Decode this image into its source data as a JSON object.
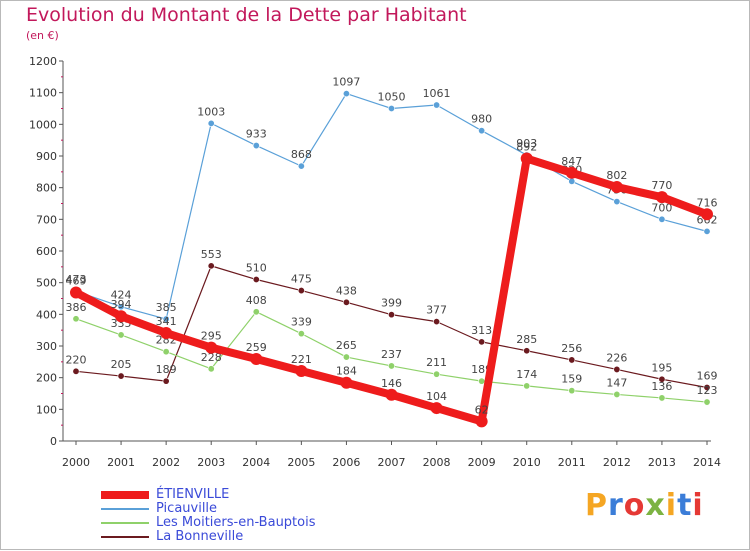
{
  "header": {
    "title": "Evolution du Montant de la Dette par Habitant",
    "unit": "(en €)"
  },
  "logo": {
    "text": "Proxiti",
    "colors": [
      "#f5a623",
      "#3b7dd8",
      "#e53935",
      "#7cb342",
      "#f5a623",
      "#3b7dd8",
      "#e53935"
    ]
  },
  "chart_data": {
    "type": "line",
    "title": "Evolution du Montant de la Dette par Habitant",
    "ylabel": "(en €)",
    "xlabel": "",
    "ylim": [
      0,
      1200
    ],
    "yticks": [
      0,
      100,
      200,
      300,
      400,
      500,
      600,
      700,
      800,
      900,
      1000,
      1100,
      1200
    ],
    "grid": false,
    "legend_position": "bottom-left",
    "categories": [
      "2000",
      "2001",
      "2002",
      "2003",
      "2004",
      "2005",
      "2006",
      "2007",
      "2008",
      "2009",
      "2010",
      "2011",
      "2012",
      "2013",
      "2014"
    ],
    "series": [
      {
        "name": "La Bonneville",
        "color": "#6b1a1f",
        "values": [
          220,
          205,
          189,
          553,
          510,
          475,
          438,
          399,
          377,
          313,
          285,
          256,
          226,
          195,
          169
        ]
      },
      {
        "name": "Les Moitiers-en-Bauptois",
        "color": "#8fd16a",
        "values": [
          386,
          335,
          282,
          228,
          408,
          339,
          265,
          237,
          211,
          189,
          174,
          159,
          147,
          136,
          123
        ]
      },
      {
        "name": "Picauville",
        "color": "#5aa0d8",
        "values": [
          473,
          424,
          385,
          1003,
          933,
          868,
          1097,
          1050,
          1061,
          980,
          903,
          820,
          756,
          700,
          662
        ]
      },
      {
        "name": "ÉTIENVILLE",
        "color": "#ee1c1c",
        "values": [
          469,
          394,
          341,
          295,
          259,
          221,
          184,
          146,
          104,
          62,
          892,
          847,
          802,
          770,
          716
        ]
      }
    ],
    "legend_order": [
      "ÉTIENVILLE",
      "Picauville",
      "Les Moitiers-en-Bauptois",
      "La Bonneville"
    ]
  }
}
